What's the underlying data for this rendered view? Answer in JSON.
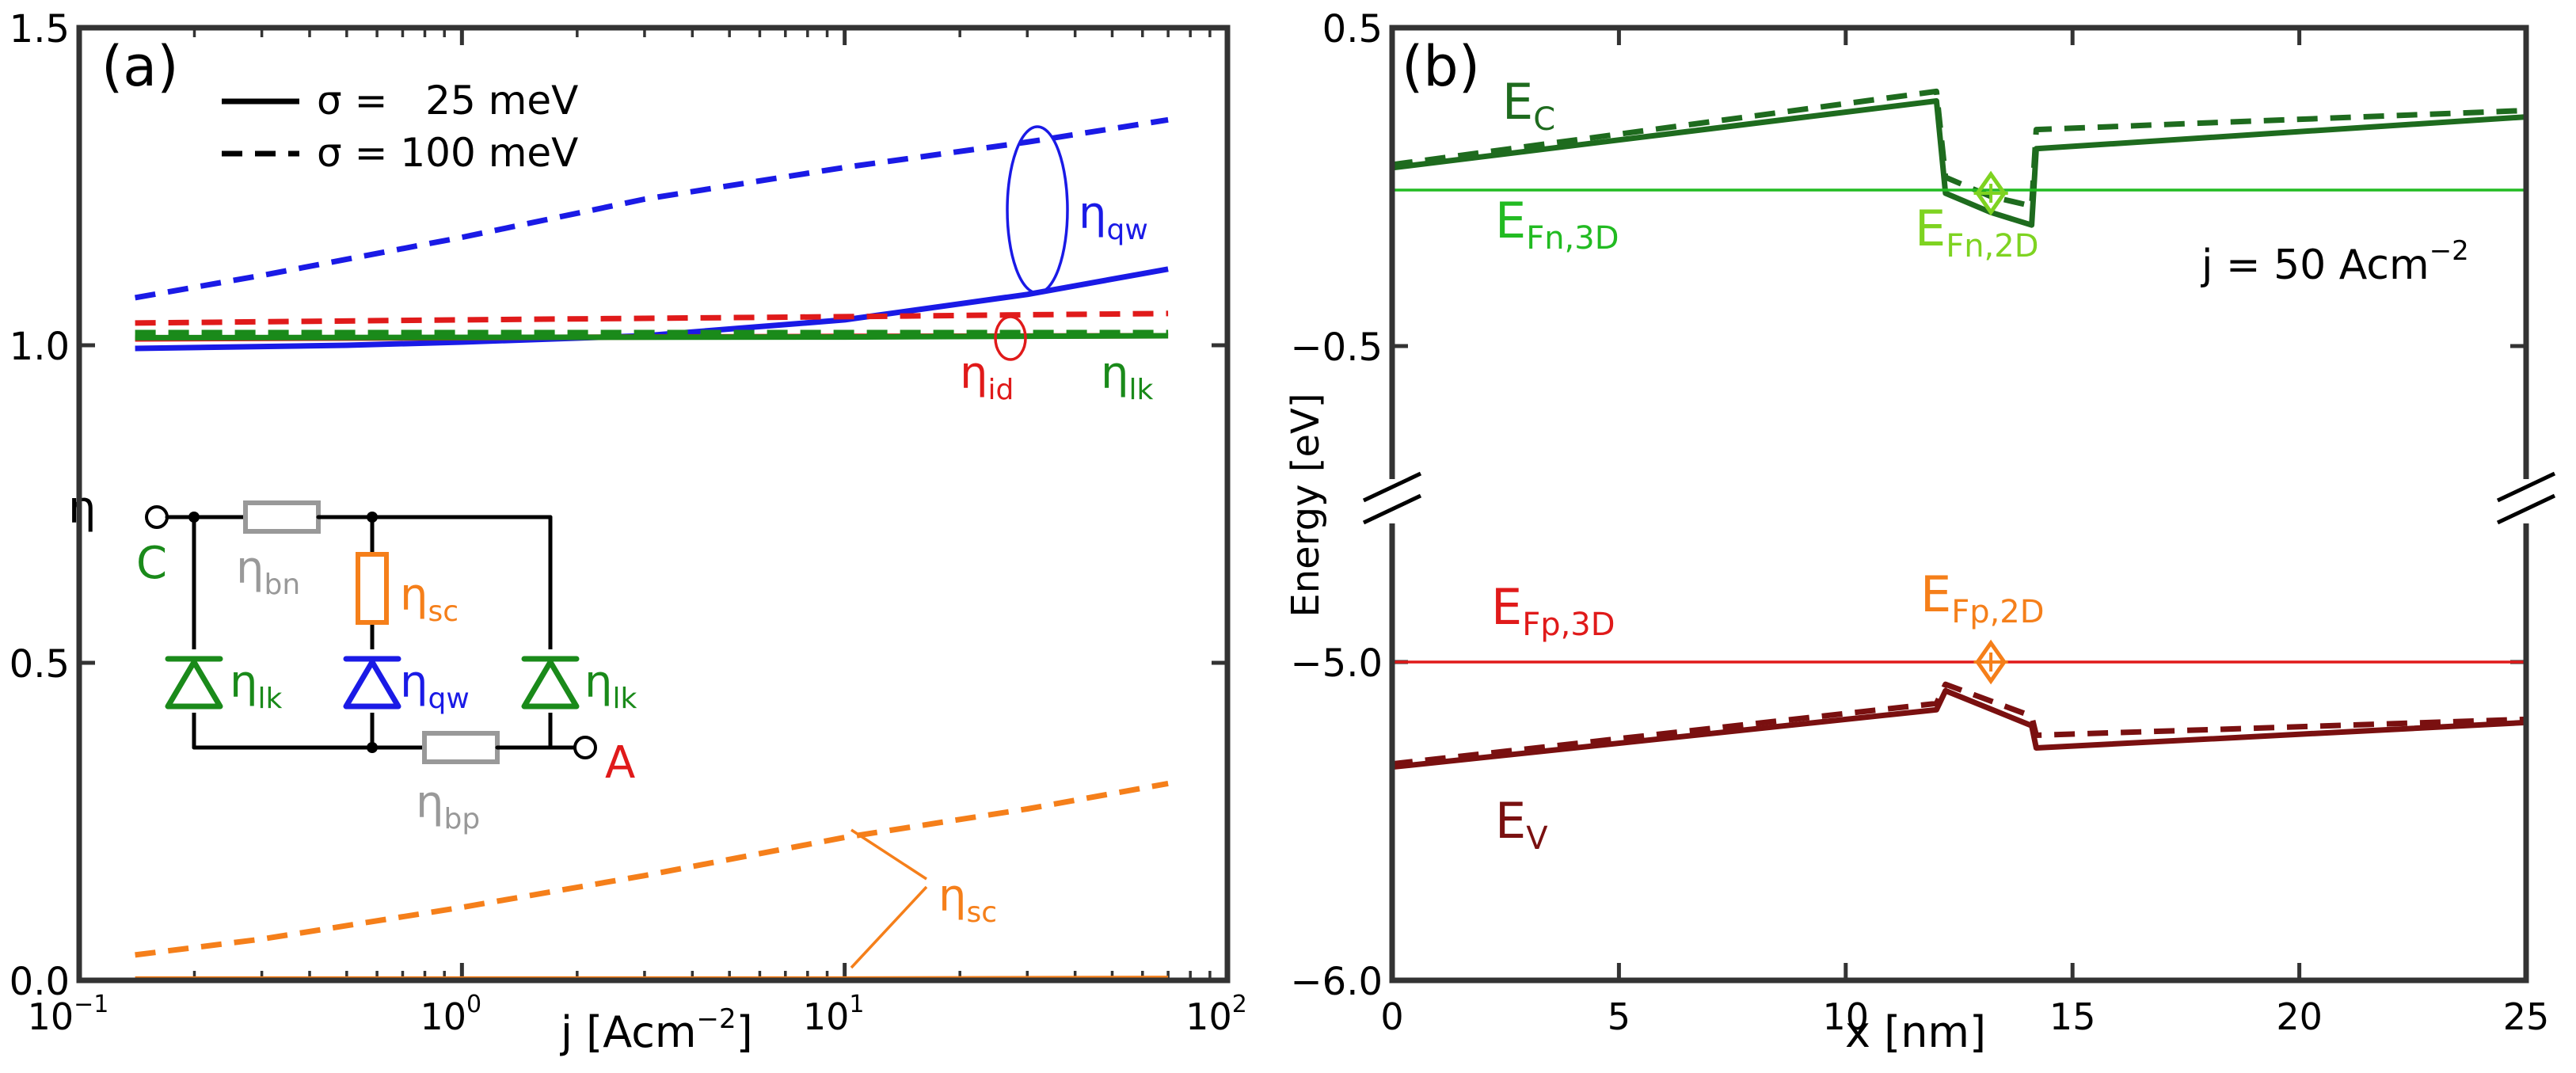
{
  "chart_data": [
    {
      "panel": "(a)",
      "type": "line",
      "xscale": "log",
      "xlabel_main": "j [Acm",
      "xlabel_sup": "−2",
      "xlabel_end": "]",
      "ylabel": "η",
      "xlim": [
        0.1,
        100
      ],
      "ylim": [
        0.0,
        1.5
      ],
      "xticks": [
        {
          "value": 0.1,
          "base": "10",
          "exp": "−1"
        },
        {
          "value": 1,
          "base": "10",
          "exp": "0"
        },
        {
          "value": 10,
          "base": "10",
          "exp": "1"
        },
        {
          "value": 100,
          "base": "10",
          "exp": "2"
        }
      ],
      "yticks": [
        {
          "value": 0.0,
          "label": "0.0"
        },
        {
          "value": 0.5,
          "label": "0.5"
        },
        {
          "value": 1.0,
          "label": "1.0"
        },
        {
          "value": 1.5,
          "label": "1.5"
        }
      ],
      "legend": [
        {
          "style": "solid",
          "label": "σ =   25 meV"
        },
        {
          "style": "dashed",
          "label": "σ = 100 meV"
        }
      ],
      "series": [
        {
          "name": "η_qw (σ=100 meV)",
          "color": "#1a1ae6",
          "style": "dashed",
          "points": [
            [
              0.14,
              1.075
            ],
            [
              0.3,
              1.11
            ],
            [
              1,
              1.17
            ],
            [
              3,
              1.23
            ],
            [
              10,
              1.28
            ],
            [
              30,
              1.32
            ],
            [
              70,
              1.355
            ]
          ]
        },
        {
          "name": "η_qw (σ=25 meV)",
          "color": "#1a1ae6",
          "style": "solid",
          "points": [
            [
              0.14,
              0.995
            ],
            [
              0.5,
              1.0
            ],
            [
              1,
              1.005
            ],
            [
              3,
              1.015
            ],
            [
              10,
              1.04
            ],
            [
              30,
              1.08
            ],
            [
              70,
              1.12
            ]
          ]
        },
        {
          "name": "η_id (σ=100 meV)",
          "color": "#e01a1a",
          "style": "dashed",
          "points": [
            [
              0.14,
              1.035
            ],
            [
              1,
              1.04
            ],
            [
              10,
              1.045
            ],
            [
              30,
              1.048
            ],
            [
              70,
              1.05
            ]
          ]
        },
        {
          "name": "η_id (σ=25 meV)",
          "color": "#e01a1a",
          "style": "solid",
          "points": [
            [
              0.14,
              1.01
            ],
            [
              1,
              1.012
            ],
            [
              10,
              1.014
            ],
            [
              70,
              1.015
            ]
          ]
        },
        {
          "name": "η_lk (σ=100 meV)",
          "color": "#1a8a1a",
          "style": "dashed",
          "points": [
            [
              0.14,
              1.02
            ],
            [
              10,
              1.02
            ],
            [
              70,
              1.02
            ]
          ]
        },
        {
          "name": "η_lk (σ=25 meV)",
          "color": "#1a8a1a",
          "style": "solid",
          "points": [
            [
              0.14,
              1.012
            ],
            [
              10,
              1.013
            ],
            [
              70,
              1.015
            ]
          ]
        },
        {
          "name": "η_sc (σ=100 meV)",
          "color": "#f57f1a",
          "style": "dashed",
          "points": [
            [
              0.14,
              0.04
            ],
            [
              0.3,
              0.065
            ],
            [
              1,
              0.115
            ],
            [
              3,
              0.165
            ],
            [
              10,
              0.225
            ],
            [
              30,
              0.27
            ],
            [
              70,
              0.31
            ]
          ]
        },
        {
          "name": "η_sc (σ=25 meV)",
          "color": "#f57f1a",
          "style": "solid",
          "points": [
            [
              0.14,
              0.002
            ],
            [
              10,
              0.002
            ],
            [
              70,
              0.003
            ]
          ]
        }
      ],
      "annotations": [
        {
          "text": "η",
          "sub": "qw",
          "color": "#1a1ae6"
        },
        {
          "text": "η",
          "sub": "id",
          "color": "#e01a1a"
        },
        {
          "text": "η",
          "sub": "lk",
          "color": "#1a8a1a"
        },
        {
          "text": "η",
          "sub": "sc",
          "color": "#f57f1a"
        }
      ],
      "circuit": {
        "terminal_c": "C",
        "terminal_a": "A",
        "labels": [
          {
            "text": "η",
            "sub": "bn",
            "color": "#999999"
          },
          {
            "text": "η",
            "sub": "sc",
            "color": "#f57f1a"
          },
          {
            "text": "η",
            "sub": "lk",
            "color": "#1a8a1a"
          },
          {
            "text": "η",
            "sub": "qw",
            "color": "#1a1ae6"
          },
          {
            "text": "η",
            "sub": "lk",
            "color": "#1a8a1a"
          },
          {
            "text": "η",
            "sub": "bp",
            "color": "#999999"
          }
        ]
      }
    },
    {
      "panel": "(b)",
      "type": "line",
      "xlabel": "x [nm]",
      "ylabel": "Energy [eV]",
      "xlim": [
        0,
        25
      ],
      "broken_y_axis": true,
      "yticks": [
        {
          "label": "0.5"
        },
        {
          "label": "−0.5"
        },
        {
          "label": "−5.0"
        },
        {
          "label": "−6.0"
        }
      ],
      "xticks": [
        "0",
        "5",
        "10",
        "15",
        "20",
        "25"
      ],
      "upper_ylim": [
        -0.5,
        0.5
      ],
      "lower_ylim": [
        -6.0,
        -5.0
      ],
      "annotation": {
        "main": "j = 50 Acm",
        "sup": "−2"
      },
      "series": [
        {
          "name": "E_C (σ=25 meV)",
          "color": "#1e6b1e",
          "style": "solid",
          "axis": "upper",
          "points": [
            [
              0,
              0.06
            ],
            [
              12,
              0.27
            ],
            [
              12.2,
              -0.02
            ],
            [
              13.2,
              -0.08
            ],
            [
              14.1,
              -0.12
            ],
            [
              14.2,
              0.12
            ],
            [
              25,
              0.22
            ]
          ]
        },
        {
          "name": "E_C (σ=100 meV)",
          "color": "#1e6b1e",
          "style": "dashed",
          "axis": "upper",
          "points": [
            [
              0,
              0.07
            ],
            [
              12,
              0.3
            ],
            [
              12.2,
              0.03
            ],
            [
              13.2,
              -0.03
            ],
            [
              14.1,
              -0.06
            ],
            [
              14.2,
              0.18
            ],
            [
              25,
              0.24
            ]
          ]
        },
        {
          "name": "E_Fn,3D",
          "color": "#22bb22",
          "style": "thin",
          "axis": "upper",
          "points": [
            [
              0,
              -0.01
            ],
            [
              25,
              -0.01
            ]
          ]
        },
        {
          "name": "E_V (σ=25 meV)",
          "color": "#7a1010",
          "style": "solid",
          "axis": "lower",
          "points": [
            [
              0,
              -5.33
            ],
            [
              12,
              -5.15
            ],
            [
              12.2,
              -5.09
            ],
            [
              14.1,
              -5.2
            ],
            [
              14.2,
              -5.27
            ],
            [
              25,
              -5.19
            ]
          ]
        },
        {
          "name": "E_V (σ=100 meV)",
          "color": "#7a1010",
          "style": "dashed",
          "axis": "lower",
          "points": [
            [
              0,
              -5.32
            ],
            [
              12,
              -5.13
            ],
            [
              12.2,
              -5.07
            ],
            [
              14.1,
              -5.17
            ],
            [
              14.2,
              -5.23
            ],
            [
              25,
              -5.18
            ]
          ]
        },
        {
          "name": "E_Fp,3D",
          "color": "#e01a1a",
          "style": "thin",
          "axis": "lower",
          "points": [
            [
              0,
              -5.0
            ],
            [
              25,
              -5.0
            ]
          ]
        }
      ],
      "markers": [
        {
          "name": "E_Fn,2D",
          "color": "#7ed321",
          "axis": "upper",
          "x": 13.2,
          "y": -0.02
        },
        {
          "name": "E_Fp,2D",
          "color": "#f57f1a",
          "axis": "lower",
          "x": 13.2,
          "y": -5.0
        }
      ],
      "labels": [
        {
          "text": "E",
          "sub": "C",
          "color": "#1e6b1e"
        },
        {
          "text": "E",
          "sub": "Fn,3D",
          "color": "#22bb22"
        },
        {
          "text": "E",
          "sub": "Fn,2D",
          "color": "#7ed321"
        },
        {
          "text": "E",
          "sub": "Fp,3D",
          "color": "#e01a1a"
        },
        {
          "text": "E",
          "sub": "Fp,2D",
          "color": "#f57f1a"
        },
        {
          "text": "E",
          "sub": "V",
          "color": "#7a1010"
        }
      ]
    }
  ]
}
